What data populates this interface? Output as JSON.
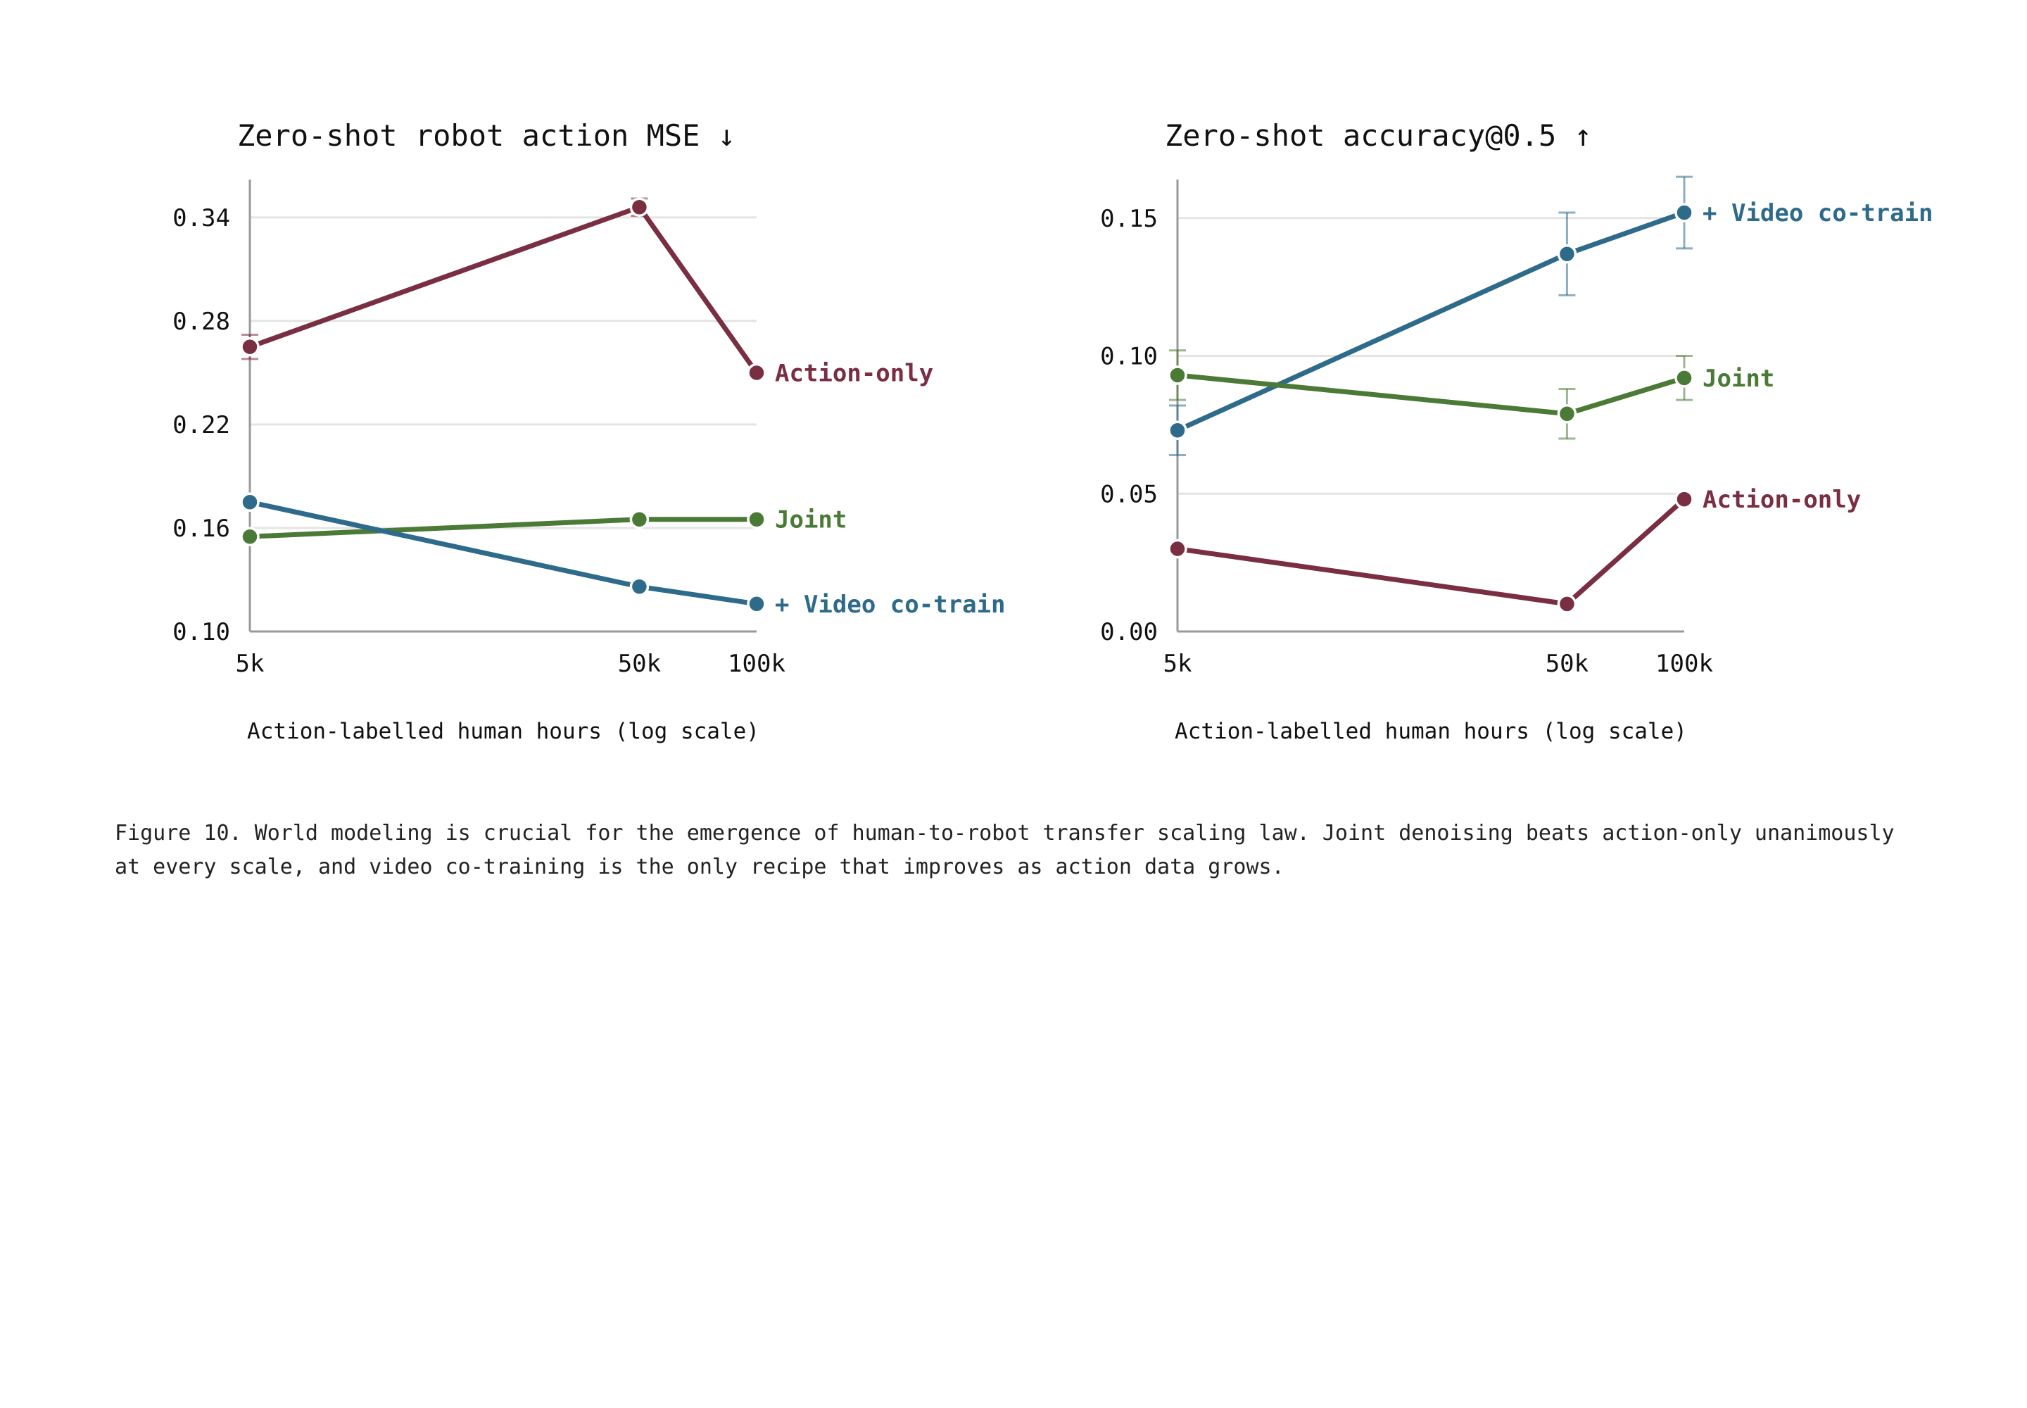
{
  "colors": {
    "action_only": "#7a2e42",
    "video_cotrain": "#2e6b8a",
    "joint": "#4a7a35",
    "grid": "#e4e4e4",
    "axis": "#999999"
  },
  "chart_data": [
    {
      "type": "line",
      "title": "Zero-shot robot action MSE ↓",
      "xlabel": "Action-labelled human hours (log scale)",
      "ylabel": "",
      "x": [
        5000,
        50000,
        100000
      ],
      "x_tick_labels": [
        "5k",
        "50k",
        "100k"
      ],
      "x_scale": "log",
      "y_ticks": [
        "0.10",
        "0.16",
        "0.22",
        "0.28",
        "0.34"
      ],
      "ylim": [
        0.1,
        0.362
      ],
      "grid": true,
      "series": [
        {
          "name": "Action-only",
          "color_key": "action_only",
          "values": [
            0.265,
            0.346,
            0.25
          ],
          "err": [
            0.007,
            0.005,
            0
          ]
        },
        {
          "name": "Joint",
          "color_key": "joint",
          "values": [
            0.155,
            0.165,
            0.165
          ],
          "err": [
            0,
            0,
            0
          ]
        },
        {
          "name": "+ Video co-train",
          "color_key": "video_cotrain",
          "values": [
            0.175,
            0.126,
            0.116
          ],
          "err": [
            0,
            0,
            0
          ]
        }
      ]
    },
    {
      "type": "line",
      "title": "Zero-shot accuracy@0.5 ↑",
      "xlabel": "Action-labelled human hours (log scale)",
      "ylabel": "",
      "x": [
        5000,
        50000,
        100000
      ],
      "x_tick_labels": [
        "5k",
        "50k",
        "100k"
      ],
      "x_scale": "log",
      "y_ticks": [
        "0.00",
        "0.05",
        "0.10",
        "0.15"
      ],
      "ylim": [
        0.0,
        0.164
      ],
      "grid": true,
      "series": [
        {
          "name": "+ Video co-train",
          "color_key": "video_cotrain",
          "values": [
            0.073,
            0.137,
            0.152
          ],
          "err": [
            0.009,
            0.015,
            0.013
          ]
        },
        {
          "name": "Joint",
          "color_key": "joint",
          "values": [
            0.093,
            0.079,
            0.092
          ],
          "err": [
            0.009,
            0.009,
            0.008
          ]
        },
        {
          "name": "Action-only",
          "color_key": "action_only",
          "values": [
            0.03,
            0.01,
            0.048
          ],
          "err": [
            0,
            0,
            0
          ]
        }
      ]
    }
  ],
  "caption": "Figure 10. World modeling is crucial for the emergence of human-to-robot transfer scaling law. Joint denoising beats action-only unanimously at every scale, and video co-training is the only recipe that improves as action data grows."
}
